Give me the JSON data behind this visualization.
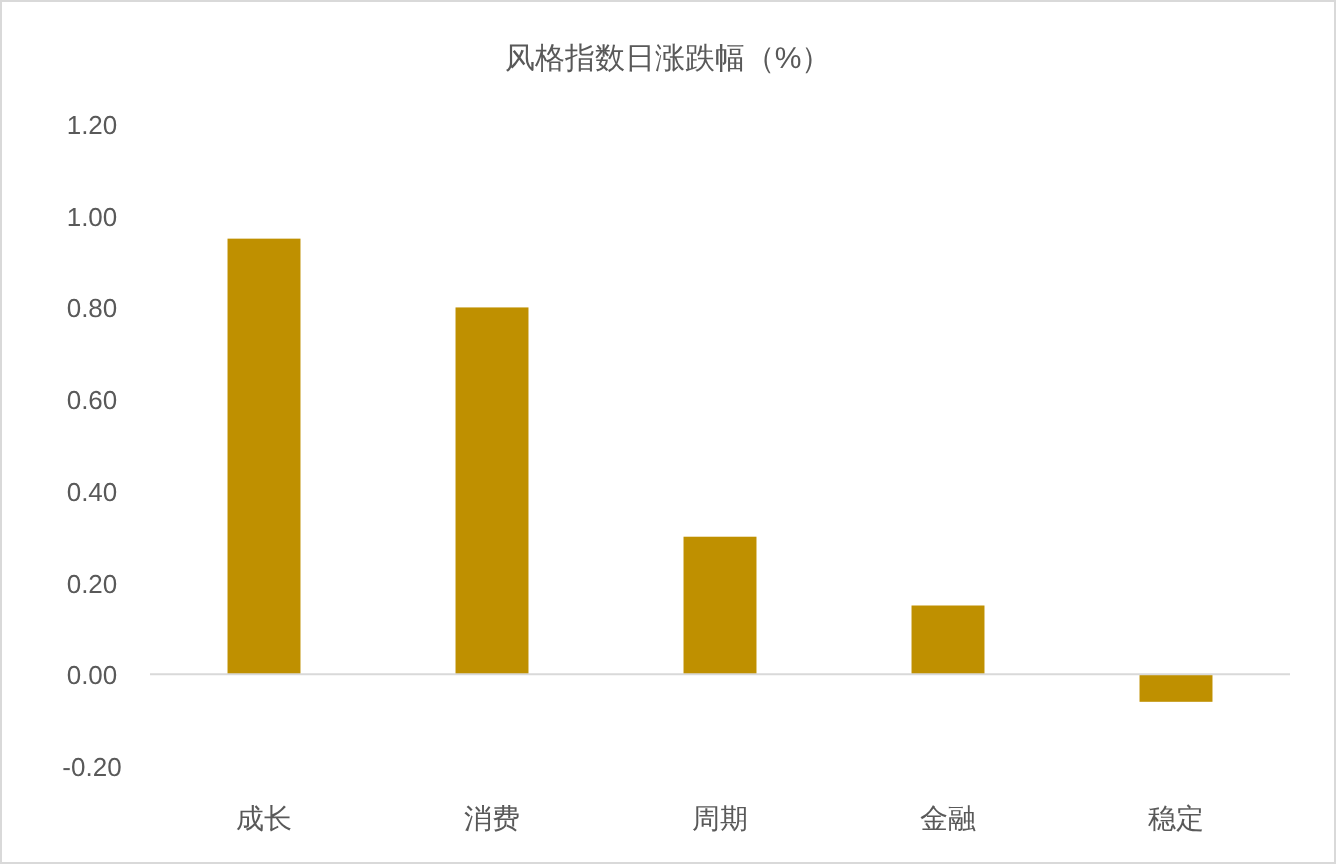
{
  "chart_data": {
    "type": "bar",
    "title": "风格指数日涨跌幅（%）",
    "categories": [
      "成长",
      "消费",
      "周期",
      "金融",
      "稳定"
    ],
    "values": [
      0.95,
      0.8,
      0.3,
      0.15,
      -0.06
    ],
    "color": "#bf9000",
    "ylim": [
      -0.2,
      1.2
    ],
    "yticks": [
      {
        "value": -0.2,
        "label": "-0.20"
      },
      {
        "value": 0,
        "label": "0.00"
      },
      {
        "value": 0.2,
        "label": "0.20"
      },
      {
        "value": 0.4,
        "label": "0.40"
      },
      {
        "value": 0.6,
        "label": "0.60"
      },
      {
        "value": 0.8,
        "label": "0.80"
      },
      {
        "value": 1.0,
        "label": "1.00"
      },
      {
        "value": 1.2,
        "label": "1.20"
      }
    ],
    "tick_labels": true
  }
}
